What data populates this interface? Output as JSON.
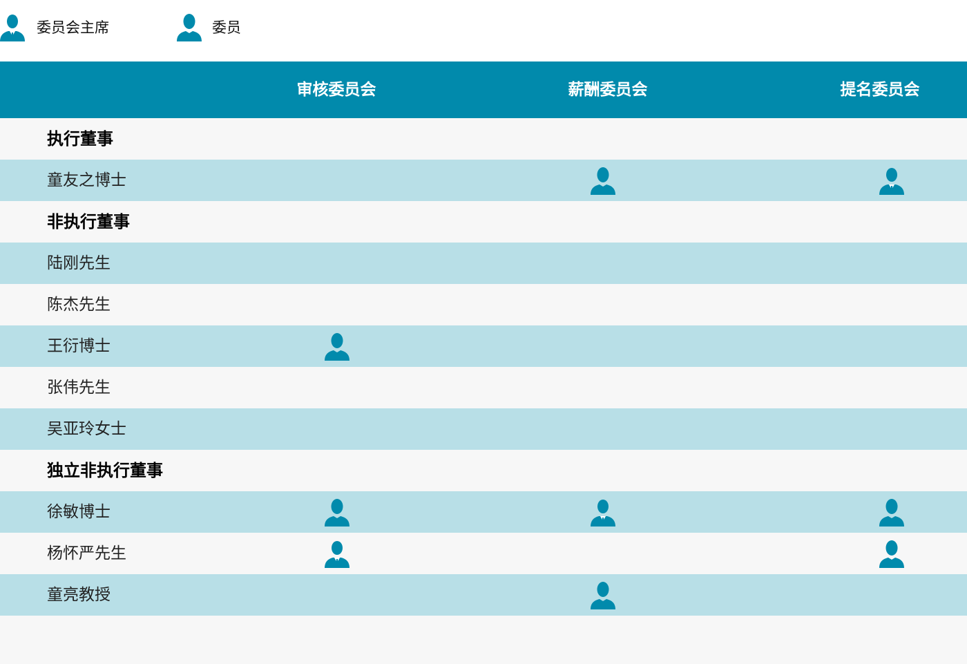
{
  "legend": {
    "chair": {
      "icon": "chairman-icon",
      "label": "委员会主席"
    },
    "member": {
      "icon": "member-icon",
      "label": "委员"
    }
  },
  "header": {
    "columns": [
      "审核委员会",
      "薪酬委员会",
      "提名委员会"
    ]
  },
  "colors": {
    "accent": "#018aac",
    "header_bg": "#018aac",
    "row_light": "#f7f7f7",
    "row_blue": "#b8dfe7"
  },
  "rows": [
    {
      "type": "section",
      "label": "执行董事"
    },
    {
      "type": "person",
      "name": "童友之博士",
      "roles": [
        "",
        "member",
        "chair"
      ]
    },
    {
      "type": "section",
      "label": "非执行董事"
    },
    {
      "type": "person",
      "name": "陆刚先生",
      "roles": [
        "",
        "",
        ""
      ]
    },
    {
      "type": "person",
      "name": "陈杰先生",
      "roles": [
        "",
        "",
        ""
      ]
    },
    {
      "type": "person",
      "name": "王衍博士",
      "roles": [
        "member",
        "",
        ""
      ]
    },
    {
      "type": "person",
      "name": "张伟先生",
      "roles": [
        "",
        "",
        ""
      ]
    },
    {
      "type": "person",
      "name": "吴亚玲女士",
      "roles": [
        "",
        "",
        ""
      ]
    },
    {
      "type": "section",
      "label": "独立非执行董事"
    },
    {
      "type": "person",
      "name": "徐敏博士",
      "roles": [
        "member",
        "chair",
        "member"
      ]
    },
    {
      "type": "person",
      "name": "杨怀严先生",
      "roles": [
        "chair",
        "",
        "member"
      ]
    },
    {
      "type": "person",
      "name": "童亮教授",
      "roles": [
        "",
        "member",
        ""
      ]
    }
  ]
}
